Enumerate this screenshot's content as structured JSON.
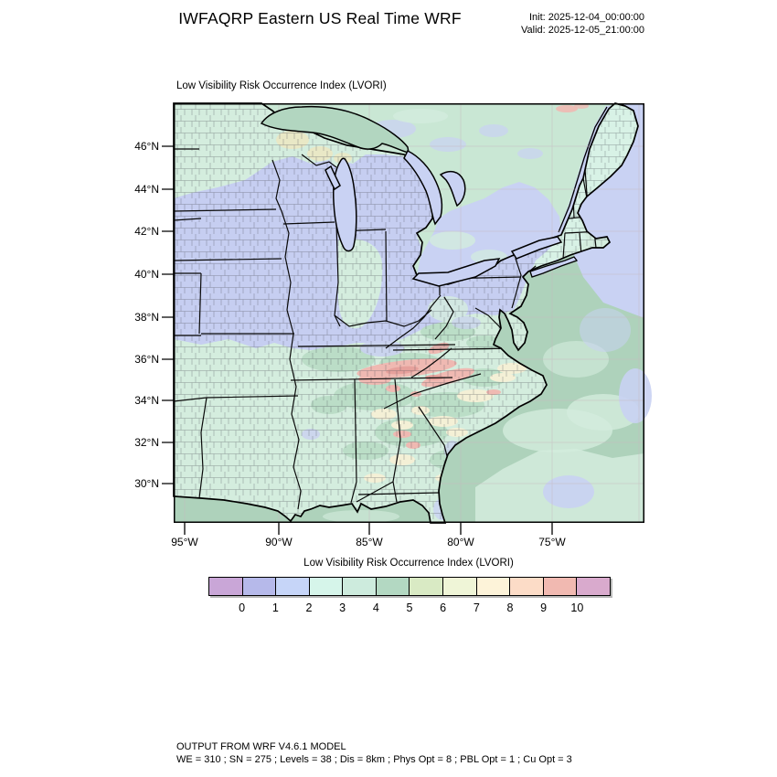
{
  "header": {
    "title": "IWFAQRP Eastern US Real Time WRF",
    "init_line": "Init: 2025-12-04_00:00:00",
    "valid_line": "Valid: 2025-12-05_21:00:00"
  },
  "map": {
    "subtitle": "Low Visibility Risk Occurrence Index   (LVORI)",
    "lat_ticks": [
      "46°N",
      "44°N",
      "42°N",
      "40°N",
      "38°N",
      "36°N",
      "34°N",
      "32°N",
      "30°N"
    ],
    "lon_ticks": [
      "95°W",
      "90°W",
      "85°W",
      "80°W",
      "75°W"
    ]
  },
  "colorbar": {
    "title": "Low Visibility Risk Occurrence Index  (LVORI)",
    "tick_labels": [
      "0",
      "1",
      "2",
      "3",
      "4",
      "5",
      "6",
      "7",
      "8",
      "9",
      "10"
    ],
    "colors": [
      "#c9a6d7",
      "#b6b9ea",
      "#c6d5f8",
      "#d6f5ea",
      "#cdebdd",
      "#b3d8c2",
      "#d9eac4",
      "#eff5d7",
      "#fdf3d9",
      "#fcdcc7",
      "#f1b9b1",
      "#d9aacd"
    ]
  },
  "footer": {
    "line1": "OUTPUT FROM WRF V4.6.1 MODEL",
    "line2": "WE = 310 ; SN = 275 ; Levels = 38 ; Dis = 8km ; Phys Opt = 8 ; PBL Opt = 1 ; Cu Opt = 3"
  },
  "colors": {
    "ocean": "#aed2bb",
    "ocean_mint": "#d3ecdd",
    "water_blue": "#c9d2f3",
    "canada": "#c9e7d4",
    "land": "#d4edde",
    "midwest": "#c6cef1",
    "sage": "#b9dcc5",
    "cream": "#f4f0d6",
    "pink": "#efb9b2",
    "pink_deep": "#e6a19c",
    "lavender": "#c9d0f0",
    "ne_mint": "#d8f2e6",
    "superior": "#b2d6c0",
    "yellow": "#ebe7c3"
  },
  "chart_data": {
    "type": "map",
    "title": "Low Visibility Risk Occurrence Index (LVORI)",
    "model_title": "IWFAQRP Eastern US Real Time WRF",
    "init": "2025-12-04_00:00:00",
    "valid": "2025-12-05_21:00:00",
    "legend_values": [
      0,
      1,
      2,
      3,
      4,
      5,
      6,
      7,
      8,
      9,
      10
    ],
    "lat_axis": [
      "30°N",
      "32°N",
      "34°N",
      "36°N",
      "38°N",
      "40°N",
      "42°N",
      "44°N",
      "46°N"
    ],
    "lon_axis": [
      "95°W",
      "90°W",
      "85°W",
      "80°W",
      "75°W"
    ],
    "summary": "Filled LVORI field over eastern US county map: values 1-2 (blue) across the Midwest, Great Lakes states, NY and PA; 3-5 (greens) over the Southeast, Minnesota, New England, Canada and offshore waters; scattered 6-8 (cream/peach) patches in the Deep South and coastal plain; isolated 8-10 (pink/red) maxima along the southern Appalachians of eastern Tennessee / western North Carolina / southwest Virginia."
  }
}
